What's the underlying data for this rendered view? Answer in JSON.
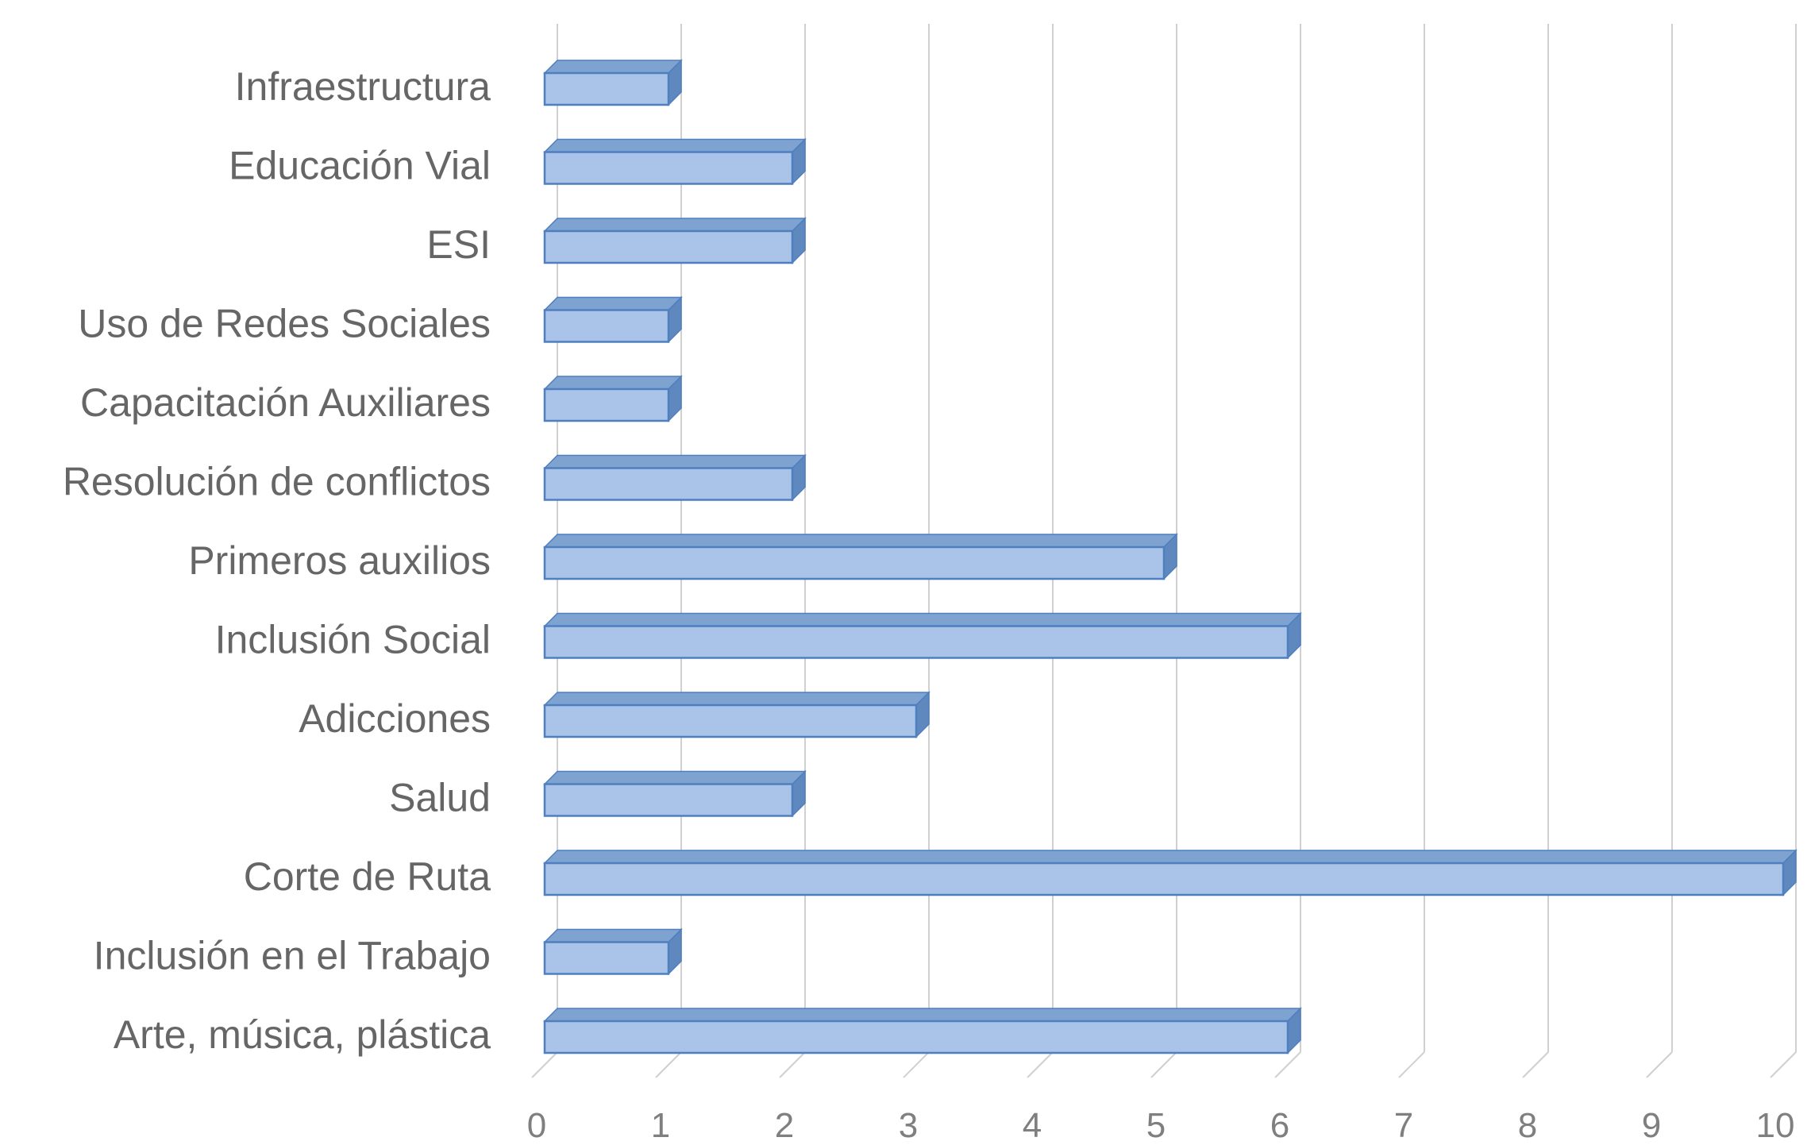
{
  "chart_data": {
    "type": "bar",
    "orientation": "horizontal",
    "style": "3d",
    "title": "",
    "xlabel": "",
    "ylabel": "",
    "categories": [
      "Infraestructura",
      "Educación Vial",
      "ESI",
      "Uso de Redes Sociales",
      "Capacitación Auxiliares",
      "Resolución de conflictos",
      "Primeros auxilios",
      "Inclusión Social",
      "Adicciones",
      "Salud",
      "Corte de Ruta",
      "Inclusión en el Trabajo",
      "Arte, música, plástica"
    ],
    "values": [
      1,
      2,
      2,
      1,
      1,
      2,
      5,
      6,
      3,
      2,
      10,
      1,
      6
    ],
    "xlim": [
      0,
      10
    ],
    "xticks": [
      "0",
      "1",
      "2",
      "3",
      "4",
      "5",
      "6",
      "7",
      "8",
      "9",
      "10"
    ],
    "grid": true,
    "legend": "none",
    "colors": {
      "bar_front": "#a9c4e8",
      "bar_top": "#7fa3d1",
      "bar_side": "#5f88bf",
      "bar_edge": "#4f7fbf",
      "grid": "#d0d0d0"
    }
  }
}
